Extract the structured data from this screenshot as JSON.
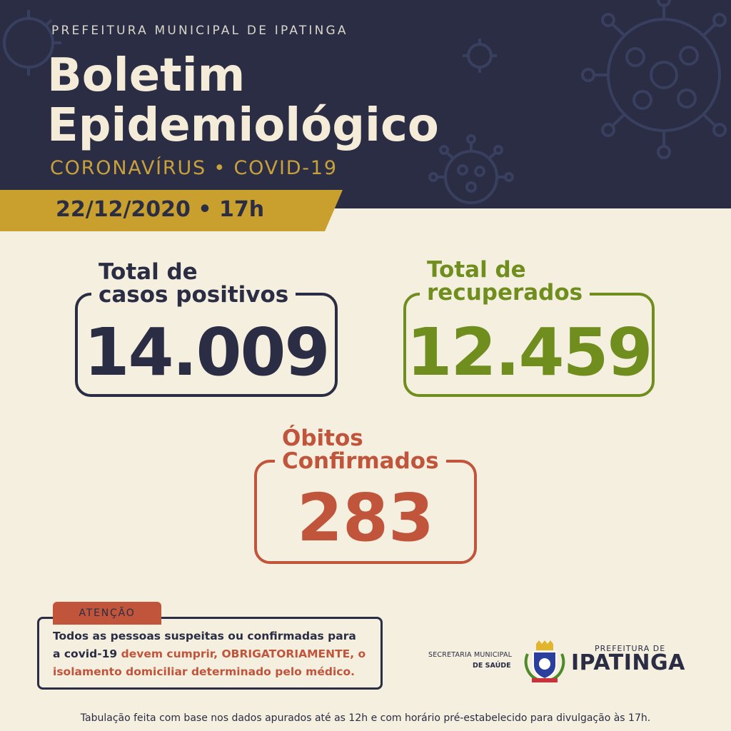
{
  "header": {
    "organization": "PREFEITURA MUNICIPAL DE IPATINGA",
    "title_line1": "Boletim",
    "title_line2": "Epidemiológico",
    "subtitle": "CORONAVÍRUS • COVID-19",
    "date": "22/12/2020 • 17h"
  },
  "stats": {
    "cases": {
      "label_line1": "Total de",
      "label_line2": "casos positivos",
      "value": "14.009"
    },
    "recovered": {
      "label_line1": "Total de",
      "label_line2": "recuperados",
      "value": "12.459"
    },
    "deaths": {
      "label_line1": "Óbitos",
      "label_line2": "Confirmados",
      "value": "283"
    }
  },
  "notice": {
    "title": "ATENÇÃO",
    "line1": "Todos as pessoas suspeitas ou confirmadas para",
    "line2_start": "a covid-19 ",
    "line2_highlight": "devem cumprir, OBRIGATORIAMENTE, o",
    "line3": "isolamento domiciliar determinado pelo médico."
  },
  "secretaria": {
    "line1": "SECRETARIA MUNICIPAL",
    "line2": "DE SAÚDE"
  },
  "logo": {
    "top": "PREFEITURA DE",
    "main": "IPATINGA"
  },
  "footer": "Tabulação feita com base nos dados apurados até as 12h e com horário pré-estabelecido para divulgação às 17h.",
  "colors": {
    "navy": "#2a2d43",
    "cream": "#f5efdf",
    "gold": "#c9a02e",
    "green": "#6f8e1e",
    "rust": "#c0553c"
  },
  "icons": [
    "coronavirus-icon",
    "ipatinga-crest-icon"
  ]
}
